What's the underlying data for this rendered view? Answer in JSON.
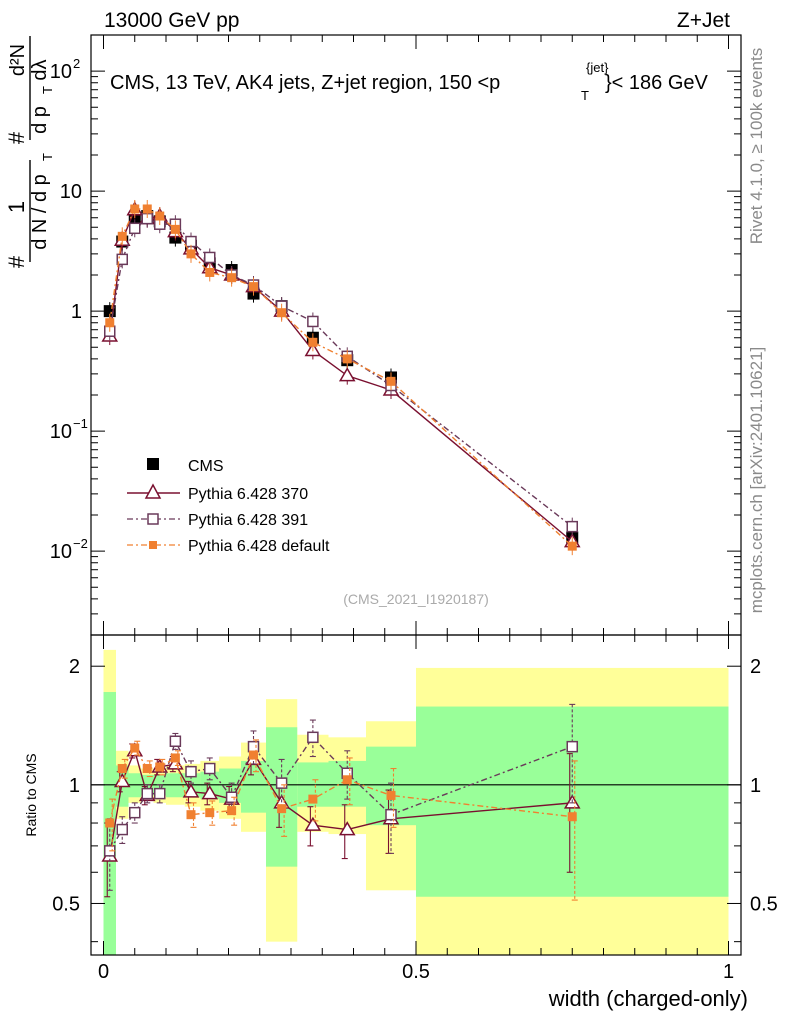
{
  "header": {
    "energy_label": "13000 GeV pp",
    "process_label": "Z+Jet"
  },
  "side_labels": {
    "rivet": "Rivet 4.1.0, ≥ 100k events",
    "mcplots": "mcplots.cern.ch [arXiv:2401.10621]"
  },
  "colors": {
    "cms": "#000000",
    "p370": "#7a1030",
    "p391": "#6a3a5a",
    "pdef": "#f08030",
    "band_inner": "#99ff99",
    "band_outer": "#ffff99"
  },
  "chart_data": [
    {
      "type": "line",
      "title": "CMS, 13 TeV, AK4 jets, Z+jet region, 150 <p_T^{jet}< 186 GeV",
      "title_parts": {
        "main": "CMS, 13 TeV, AK4 jets, Z+jet region, 150 <p",
        "sup": "{jet}",
        "sub": "T",
        "tail": "}< 186 GeV"
      },
      "watermark": "(CMS_2021_I1920187)",
      "ylabel_parts": {
        "hash": "#",
        "one": "1",
        "dN": "d N / d p",
        "T": "T",
        "num": "d²N",
        "den": "d p",
        "den_T": "T",
        "den_tail": "dλ"
      },
      "yscale": "log",
      "ylim": [
        0.002,
        200
      ],
      "xlim": [
        -0.02,
        1.02
      ],
      "y_ticks": [
        {
          "value": 0.01,
          "base": "10",
          "exp": "−2"
        },
        {
          "value": 0.1,
          "base": "10",
          "exp": "−1"
        },
        {
          "value": 1,
          "base": "1",
          "exp": ""
        },
        {
          "value": 10,
          "base": "10",
          "exp": ""
        },
        {
          "value": 100,
          "base": "10",
          "exp": "2"
        }
      ],
      "legend": [
        "CMS",
        "Pythia 6.428 370",
        "Pythia 6.428 391",
        "Pythia 6.428 default"
      ],
      "legend_position": "middle-left",
      "series": [
        {
          "name": "CMS",
          "style": "filled-square",
          "x": [
            0.01,
            0.03,
            0.05,
            0.07,
            0.09,
            0.115,
            0.14,
            0.17,
            0.205,
            0.24,
            0.285,
            0.335,
            0.39,
            0.46,
            0.75
          ],
          "y": [
            1.0,
            3.8,
            5.8,
            6.2,
            5.6,
            4.1,
            3.5,
            2.5,
            2.2,
            1.4,
            1.1,
            0.6,
            0.39,
            0.28,
            0.013
          ]
        },
        {
          "name": "Pythia 6.428 370",
          "style": "open-triangle",
          "x": [
            0.01,
            0.03,
            0.05,
            0.07,
            0.09,
            0.115,
            0.14,
            0.17,
            0.205,
            0.24,
            0.285,
            0.335,
            0.39,
            0.46,
            0.75
          ],
          "y": [
            0.62,
            3.9,
            7.0,
            5.9,
            6.2,
            4.6,
            3.3,
            2.3,
            2.0,
            1.6,
            1.0,
            0.47,
            0.29,
            0.22,
            0.012
          ]
        },
        {
          "name": "Pythia 6.428 391",
          "style": "open-square",
          "x": [
            0.01,
            0.03,
            0.05,
            0.07,
            0.09,
            0.115,
            0.14,
            0.17,
            0.205,
            0.24,
            0.285,
            0.335,
            0.39,
            0.46,
            0.75
          ],
          "y": [
            0.68,
            2.7,
            4.9,
            5.9,
            5.3,
            5.3,
            3.8,
            2.8,
            2.0,
            1.65,
            1.1,
            0.82,
            0.42,
            0.24,
            0.016
          ]
        },
        {
          "name": "Pythia 6.428 default",
          "style": "filled-square-small",
          "x": [
            0.01,
            0.03,
            0.05,
            0.07,
            0.09,
            0.115,
            0.14,
            0.17,
            0.205,
            0.24,
            0.285,
            0.335,
            0.39,
            0.46,
            0.75
          ],
          "y": [
            0.8,
            4.2,
            7.1,
            7.1,
            6.2,
            4.8,
            3.0,
            2.1,
            1.9,
            1.6,
            0.97,
            0.55,
            0.4,
            0.26,
            0.011
          ]
        }
      ]
    },
    {
      "type": "line",
      "ylabel": "Ratio to CMS",
      "xlabel": "width (charged-only)",
      "yscale": "log",
      "ylim": [
        0.37,
        2.4
      ],
      "xlim": [
        -0.02,
        1.02
      ],
      "x_ticks": [
        {
          "value": 0,
          "label": "0"
        },
        {
          "value": 0.5,
          "label": "0.5"
        },
        {
          "value": 1,
          "label": "1"
        }
      ],
      "y_ticks": [
        {
          "value": 0.5,
          "label": "0.5"
        },
        {
          "value": 1,
          "label": "1"
        },
        {
          "value": 2,
          "label": "2"
        }
      ],
      "bands": [
        {
          "x0": 0.0,
          "x1": 0.02,
          "inner": [
            0.37,
            1.72
          ],
          "outer": [
            0.37,
            2.2
          ]
        },
        {
          "x0": 0.02,
          "x1": 0.04,
          "inner": [
            0.88,
            1.12
          ],
          "outer": [
            0.82,
            1.22
          ]
        },
        {
          "x0": 0.04,
          "x1": 0.06,
          "inner": [
            0.93,
            1.07
          ],
          "outer": [
            0.9,
            1.12
          ]
        },
        {
          "x0": 0.06,
          "x1": 0.08,
          "inner": [
            0.94,
            1.06
          ],
          "outer": [
            0.91,
            1.1
          ]
        },
        {
          "x0": 0.08,
          "x1": 0.1,
          "inner": [
            0.94,
            1.06
          ],
          "outer": [
            0.9,
            1.1
          ]
        },
        {
          "x0": 0.1,
          "x1": 0.13,
          "inner": [
            0.93,
            1.07
          ],
          "outer": [
            0.89,
            1.12
          ]
        },
        {
          "x0": 0.13,
          "x1": 0.155,
          "inner": [
            0.93,
            1.07
          ],
          "outer": [
            0.88,
            1.13
          ]
        },
        {
          "x0": 0.155,
          "x1": 0.185,
          "inner": [
            0.92,
            1.08
          ],
          "outer": [
            0.86,
            1.15
          ]
        },
        {
          "x0": 0.185,
          "x1": 0.22,
          "inner": [
            0.9,
            1.1
          ],
          "outer": [
            0.82,
            1.18
          ]
        },
        {
          "x0": 0.22,
          "x1": 0.26,
          "inner": [
            0.85,
            1.15
          ],
          "outer": [
            0.76,
            1.28
          ]
        },
        {
          "x0": 0.26,
          "x1": 0.31,
          "inner": [
            0.62,
            1.4
          ],
          "outer": [
            0.4,
            1.65
          ]
        },
        {
          "x0": 0.31,
          "x1": 0.36,
          "inner": [
            0.88,
            1.14
          ],
          "outer": [
            0.76,
            1.34
          ]
        },
        {
          "x0": 0.36,
          "x1": 0.42,
          "inner": [
            0.88,
            1.15
          ],
          "outer": [
            0.75,
            1.32
          ]
        },
        {
          "x0": 0.42,
          "x1": 0.5,
          "inner": [
            0.79,
            1.25
          ],
          "outer": [
            0.54,
            1.45
          ]
        },
        {
          "x0": 0.5,
          "x1": 1.0,
          "inner": [
            0.52,
            1.58
          ],
          "outer": [
            0.37,
            1.98
          ]
        }
      ],
      "series": [
        {
          "name": "Pythia 6.428 370",
          "style": "open-triangle",
          "x": [
            0.01,
            0.03,
            0.05,
            0.07,
            0.09,
            0.115,
            0.14,
            0.17,
            0.205,
            0.24,
            0.285,
            0.335,
            0.39,
            0.46,
            0.75
          ],
          "y": [
            0.66,
            1.02,
            1.22,
            0.94,
            1.11,
            1.13,
            0.96,
            0.95,
            0.92,
            1.16,
            0.9,
            0.79,
            0.77,
            0.82,
            0.9
          ],
          "err": [
            0.14,
            0.06,
            0.05,
            0.05,
            0.05,
            0.05,
            0.06,
            0.06,
            0.07,
            0.1,
            0.12,
            0.09,
            0.12,
            0.15,
            0.3
          ]
        },
        {
          "name": "Pythia 6.428 391",
          "style": "open-square",
          "x": [
            0.01,
            0.03,
            0.05,
            0.07,
            0.09,
            0.115,
            0.14,
            0.17,
            0.205,
            0.24,
            0.285,
            0.335,
            0.39,
            0.46,
            0.75
          ],
          "y": [
            0.68,
            0.77,
            0.85,
            0.95,
            0.95,
            1.29,
            1.08,
            1.1,
            0.93,
            1.25,
            1.01,
            1.32,
            1.07,
            0.84,
            1.25
          ],
          "err": [
            0.14,
            0.06,
            0.05,
            0.05,
            0.05,
            0.06,
            0.07,
            0.07,
            0.08,
            0.12,
            0.15,
            0.14,
            0.15,
            0.17,
            0.35
          ]
        },
        {
          "name": "Pythia 6.428 default",
          "style": "filled-square-small",
          "x": [
            0.01,
            0.03,
            0.05,
            0.07,
            0.09,
            0.115,
            0.14,
            0.17,
            0.205,
            0.24,
            0.285,
            0.335,
            0.39,
            0.46,
            0.75
          ],
          "y": [
            0.8,
            1.1,
            1.24,
            1.1,
            1.11,
            1.17,
            0.84,
            0.85,
            0.86,
            1.19,
            0.87,
            0.92,
            1.03,
            0.94,
            0.83
          ],
          "err": [
            0.12,
            0.06,
            0.05,
            0.05,
            0.05,
            0.05,
            0.06,
            0.06,
            0.07,
            0.11,
            0.13,
            0.11,
            0.14,
            0.16,
            0.32
          ]
        }
      ]
    }
  ]
}
